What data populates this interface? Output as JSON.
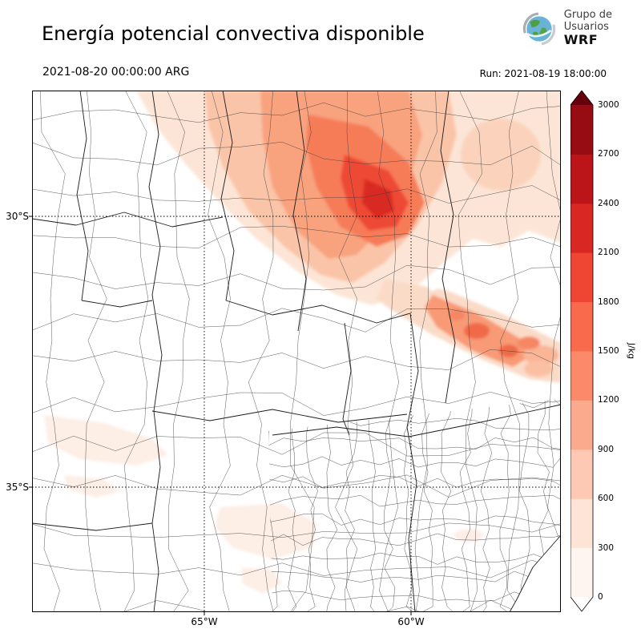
{
  "header": {
    "title": "Energía potencial convectiva disponible",
    "logo": {
      "line1": "Grupo de",
      "line2": "Usuarios",
      "line3": "WRF"
    }
  },
  "subheader": {
    "valid_time": "2021-08-20 00:00:00 ARG",
    "run_label": "Run: 2021-08-19 18:00:00"
  },
  "map": {
    "yticks": [
      {
        "label": "30°S"
      },
      {
        "label": "35°S"
      }
    ],
    "xticks": [
      {
        "label": "65°W"
      },
      {
        "label": "60°W"
      }
    ]
  },
  "colorbar": {
    "unit": "J/kg",
    "ticks": [
      "0",
      "300",
      "600",
      "900",
      "1200",
      "1500",
      "1800",
      "2100",
      "2400",
      "2700",
      "3000"
    ],
    "colors": [
      "#fff5f0",
      "#fee3d7",
      "#fdc9b4",
      "#fcaa8d",
      "#fc8a6a",
      "#f9694c",
      "#ef4533",
      "#d92723",
      "#bb151a",
      "#970b13"
    ],
    "over_color": "#67000d",
    "under_color": "#ffffff"
  },
  "chart_data": {
    "type": "heatmap",
    "title": "Energía potencial convectiva disponible",
    "units": "J/kg",
    "valid_time": "2021-08-20 00:00:00 ARG",
    "run_time": "Run: 2021-08-19 18:00:00",
    "levels": [
      0,
      300,
      600,
      900,
      1200,
      1500,
      1800,
      2100,
      2400,
      2700,
      3000
    ],
    "colorbar_extend": "both",
    "lat_ticks": [
      "30°S",
      "35°S"
    ],
    "lon_ticks": [
      "65°W",
      "60°W"
    ],
    "features": [
      {
        "area": "north-central band near 28-30°S, 62-64°W",
        "cape_jkg": "900-2100, strongest core ~1800-2100"
      },
      {
        "area": "band sloping southeast toward 31-32°S, 60°W",
        "cape_jkg": "600-1500 with local cores ~1500"
      },
      {
        "area": "northeast corner of domain",
        "cape_jkg": "300-900"
      },
      {
        "area": "scattered patches southwest and south-center near 34-36°S",
        "cape_jkg": "0-300"
      },
      {
        "area": "remainder of domain",
        "cape_jkg": "~0"
      }
    ]
  }
}
